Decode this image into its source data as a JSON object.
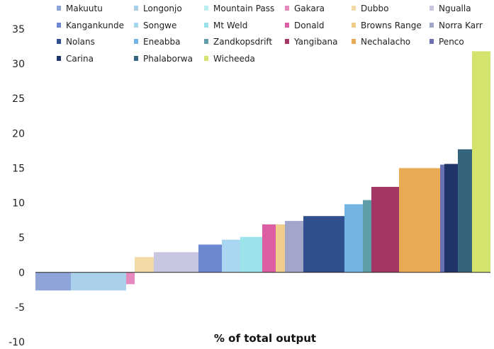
{
  "chart_data": {
    "type": "bar",
    "title": "",
    "xlabel": "% of total output",
    "ylabel": "",
    "ylim": [
      -10,
      35
    ],
    "yticks": [
      -10,
      -5,
      0,
      5,
      10,
      15,
      20,
      25,
      30,
      35
    ],
    "grid": false,
    "legend_position": "top",
    "legend_columns": 6,
    "note": "variable-width bars; width = % of total output",
    "categories": [
      "Makuutu",
      "Longonjo",
      "Mountain Pass",
      "Gakara",
      "Dubbo",
      "Ngualla",
      "Kangankunde",
      "Songwe",
      "Mt Weld",
      "Donald",
      "Browns Range",
      "Norra Karr",
      "Nolans",
      "Eneabba",
      "Zandkopsdrift",
      "Yangibana",
      "Nechalacho",
      "Penco",
      "Carina",
      "Phalaborwa",
      "Wicheeda"
    ],
    "legend_order": [
      "Makuutu",
      "Longonjo",
      "Mountain Pass",
      "Gakara",
      "Dubbo",
      "Ngualla",
      "Kangankunde",
      "Songwe",
      "Mt Weld",
      "Donald",
      "Browns Range",
      "Norra Karr",
      "Nolans",
      "Eneabba",
      "Zandkopsdrift",
      "Yangibana",
      "Nechalacho",
      "Penco",
      "Carina",
      "Phalaborwa",
      "Wicheeda"
    ],
    "series": [
      {
        "name": "Makuutu",
        "value": -2.6,
        "color": "#8ea3d6"
      },
      {
        "name": "Longonjo",
        "value": -2.6,
        "color": "#a9d1ec"
      },
      {
        "name": "Mountain Pass",
        "value": -1.8,
        "color": "#b8eef2"
      },
      {
        "name": "Gakara",
        "value": -1.7,
        "color": "#e589bf"
      },
      {
        "name": "Dubbo",
        "value": 2.2,
        "color": "#f3d9a6"
      },
      {
        "name": "Ngualla",
        "value": 2.9,
        "color": "#c6c6e0"
      },
      {
        "name": "Kangankunde",
        "value": 4.0,
        "color": "#6a87cf"
      },
      {
        "name": "Songwe",
        "value": 4.7,
        "color": "#a9d6f1"
      },
      {
        "name": "Mt Weld",
        "value": 5.1,
        "color": "#9be3ea"
      },
      {
        "name": "Donald",
        "value": 6.9,
        "color": "#de5ea3"
      },
      {
        "name": "Browns Range",
        "value": 6.9,
        "color": "#f1cd8c"
      },
      {
        "name": "Norra Karr",
        "value": 7.4,
        "color": "#a3a6cb"
      },
      {
        "name": "Nolans",
        "value": 8.1,
        "color": "#2f4f8f"
      },
      {
        "name": "Eneabba",
        "value": 9.8,
        "color": "#74b4e3"
      },
      {
        "name": "Zandkopsdrift",
        "value": 10.4,
        "color": "#5f9ea6"
      },
      {
        "name": "Yangibana",
        "value": 12.3,
        "color": "#a33664"
      },
      {
        "name": "Nechalacho",
        "value": 15.0,
        "color": "#e8aa55"
      },
      {
        "name": "Penco",
        "value": 15.5,
        "color": "#6a6fb1"
      },
      {
        "name": "Carina",
        "value": 15.6,
        "color": "#1f3568"
      },
      {
        "name": "Phalaborwa",
        "value": 17.7,
        "color": "#35647d"
      },
      {
        "name": "Wicheeda",
        "value": 31.8,
        "color": "#d3e36b"
      }
    ]
  }
}
